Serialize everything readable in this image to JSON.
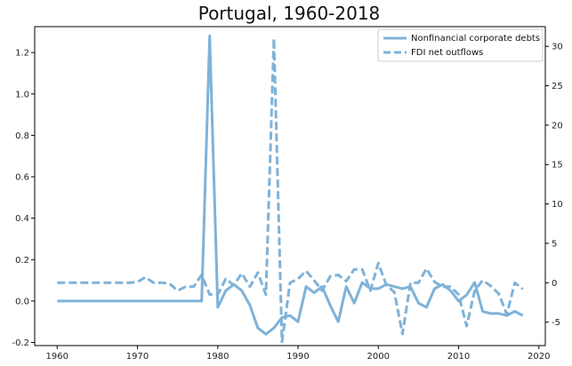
{
  "chart_data": {
    "type": "line",
    "title": "Portugal, 1960-2018",
    "xlabel": "",
    "ylabel_left": "",
    "ylabel_right": "",
    "xlim": [
      1960,
      2018
    ],
    "ylim_left": [
      -0.2,
      1.3
    ],
    "ylim_right": [
      -8,
      32
    ],
    "x_ticks": [
      1960,
      1970,
      1980,
      1990,
      2000,
      2010,
      2020
    ],
    "y_ticks_left": [
      -0.2,
      0.0,
      0.2,
      0.4,
      0.6,
      0.8,
      1.0,
      1.2
    ],
    "y_ticks_right": [
      -5,
      0,
      5,
      10,
      15,
      20,
      25,
      30
    ],
    "legend_position": "top-right",
    "grid": false,
    "color": "#7fb2d8",
    "series": [
      {
        "name": "Nonfinancial corporate debts",
        "axis": "left",
        "style": "solid",
        "x": [
          1960,
          1961,
          1962,
          1963,
          1964,
          1965,
          1966,
          1967,
          1968,
          1969,
          1970,
          1971,
          1972,
          1973,
          1974,
          1975,
          1976,
          1977,
          1978,
          1979,
          1980,
          1981,
          1982,
          1983,
          1984,
          1985,
          1986,
          1987,
          1988,
          1989,
          1990,
          1991,
          1992,
          1993,
          1994,
          1995,
          1996,
          1997,
          1998,
          1999,
          2000,
          2001,
          2002,
          2003,
          2004,
          2005,
          2006,
          2007,
          2008,
          2009,
          2010,
          2011,
          2012,
          2013,
          2014,
          2015,
          2016,
          2017,
          2018
        ],
        "values": [
          0,
          0,
          0,
          0,
          0,
          0,
          0,
          0,
          0,
          0,
          0,
          0,
          0,
          0,
          0,
          0,
          0,
          0,
          0,
          1.28,
          -0.03,
          0.05,
          0.08,
          0.05,
          -0.02,
          -0.13,
          -0.16,
          -0.13,
          -0.08,
          -0.07,
          -0.1,
          0.07,
          0.04,
          0.07,
          -0.02,
          -0.1,
          0.07,
          -0.01,
          0.09,
          0.06,
          0.06,
          0.08,
          0.07,
          0.06,
          0.07,
          -0.01,
          -0.03,
          0.06,
          0.08,
          0.05,
          0.0,
          0.03,
          0.09,
          -0.05,
          -0.06,
          -0.06,
          -0.07,
          -0.05,
          -0.07
        ]
      },
      {
        "name": "FDI net outflows",
        "axis": "right",
        "style": "dashed",
        "x": [
          1960,
          1961,
          1962,
          1963,
          1964,
          1965,
          1966,
          1967,
          1968,
          1969,
          1970,
          1971,
          1972,
          1973,
          1974,
          1975,
          1976,
          1977,
          1978,
          1979,
          1980,
          1981,
          1982,
          1983,
          1984,
          1985,
          1986,
          1987,
          1988,
          1989,
          1990,
          1991,
          1992,
          1993,
          1994,
          1995,
          1996,
          1997,
          1998,
          1999,
          2000,
          2001,
          2002,
          2003,
          2004,
          2005,
          2006,
          2007,
          2008,
          2009,
          2010,
          2011,
          2012,
          2013,
          2014,
          2015,
          2016,
          2017,
          2018
        ],
        "values": [
          0,
          0,
          0,
          0,
          0,
          0,
          0,
          0,
          0,
          0,
          0.1,
          0.7,
          0.0,
          0.0,
          -0.1,
          -1.0,
          -0.5,
          -0.5,
          1.0,
          -1.5,
          -1.5,
          0.5,
          -0.3,
          1.2,
          -0.5,
          1.3,
          -1.5,
          31,
          -7.5,
          0,
          0.5,
          1.5,
          0.3,
          -1,
          0.8,
          1,
          0.2,
          1.7,
          1.7,
          -1,
          2.5,
          -0.3,
          -1.2,
          -6.5,
          0,
          0,
          1.8,
          0.1,
          -0.5,
          -0.5,
          -1.5,
          -5.5,
          -1,
          0.3,
          -0.4,
          -1.4,
          -4,
          0,
          -0.8
        ]
      }
    ]
  }
}
